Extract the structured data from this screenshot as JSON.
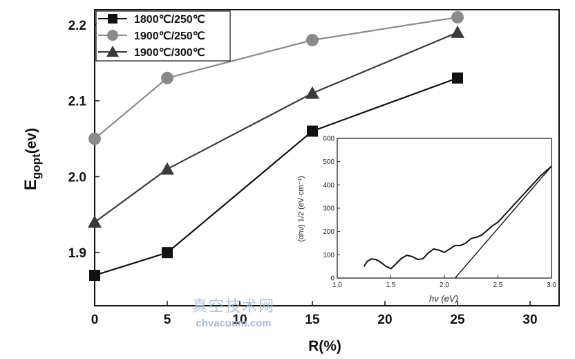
{
  "chart_data": [
    {
      "type": "line",
      "title": "",
      "xlabel": "R(%)",
      "ylabel_main": "E",
      "ylabel_sub": "gopt",
      "ylabel_rest": "(ev)",
      "xlim": [
        0,
        32
      ],
      "ylim": [
        1.83,
        2.22
      ],
      "xticks": [
        0,
        5,
        10,
        15,
        20,
        25,
        30
      ],
      "xtick_labels": [
        "0",
        "5",
        "10",
        "15",
        "20",
        "25",
        "30"
      ],
      "yticks": [
        1.9,
        2.0,
        2.1,
        2.2
      ],
      "ytick_labels": [
        "1.9",
        "2.0",
        "2.1",
        "2.2"
      ],
      "x": [
        0,
        5,
        15,
        25
      ],
      "legend_position": "top-left",
      "series": [
        {
          "name": "1800℃/250℃",
          "marker": "square",
          "color": "#111111",
          "values": [
            1.87,
            1.9,
            2.06,
            2.13
          ]
        },
        {
          "name": "1900℃/250℃",
          "marker": "circle",
          "color": "#8a8a8a",
          "values": [
            2.05,
            2.13,
            2.18,
            2.21
          ]
        },
        {
          "name": "1900℃/300℃",
          "marker": "triangle",
          "color": "#3a3a3a",
          "values": [
            1.94,
            2.01,
            2.11,
            2.19
          ]
        }
      ]
    },
    {
      "type": "line",
      "title": "",
      "xlabel": "hν (eV)",
      "ylabel": "(αhν) 1/2 (eV·cm⁻¹)",
      "xlim": [
        1.0,
        3.0
      ],
      "ylim": [
        0,
        600
      ],
      "xticks": [
        1.0,
        1.5,
        2.0,
        2.5,
        3.0
      ],
      "xtick_labels": [
        "1.0",
        "1.5",
        "2.0",
        "2.5",
        "3.0"
      ],
      "yticks": [
        0,
        100,
        200,
        300,
        400,
        500,
        600
      ],
      "ytick_labels": [
        "0",
        "100",
        "200",
        "300",
        "400",
        "500",
        "600"
      ],
      "series": [
        {
          "x": [
            1.25,
            1.28,
            1.32,
            1.36,
            1.4,
            1.45,
            1.5,
            1.55,
            1.6,
            1.65,
            1.7,
            1.75,
            1.8,
            1.85,
            1.9,
            1.95,
            2.0,
            2.05,
            2.1,
            2.15,
            2.2,
            2.25,
            2.3,
            2.35,
            2.4,
            2.45,
            2.5,
            2.55,
            2.6,
            2.65,
            2.7,
            2.75,
            2.8,
            2.85,
            2.9,
            2.95,
            3.0
          ],
          "values": [
            50,
            72,
            82,
            80,
            70,
            52,
            40,
            62,
            85,
            98,
            92,
            80,
            83,
            108,
            125,
            120,
            110,
            125,
            140,
            140,
            150,
            170,
            175,
            185,
            205,
            225,
            240,
            265,
            290,
            315,
            340,
            365,
            390,
            415,
            440,
            460,
            480
          ]
        },
        {
          "x": [
            2.1,
            3.0
          ],
          "values": [
            0,
            480
          ]
        }
      ]
    }
  ],
  "watermark": {
    "cn": "真空技术网",
    "en": "chvacuum.com"
  }
}
